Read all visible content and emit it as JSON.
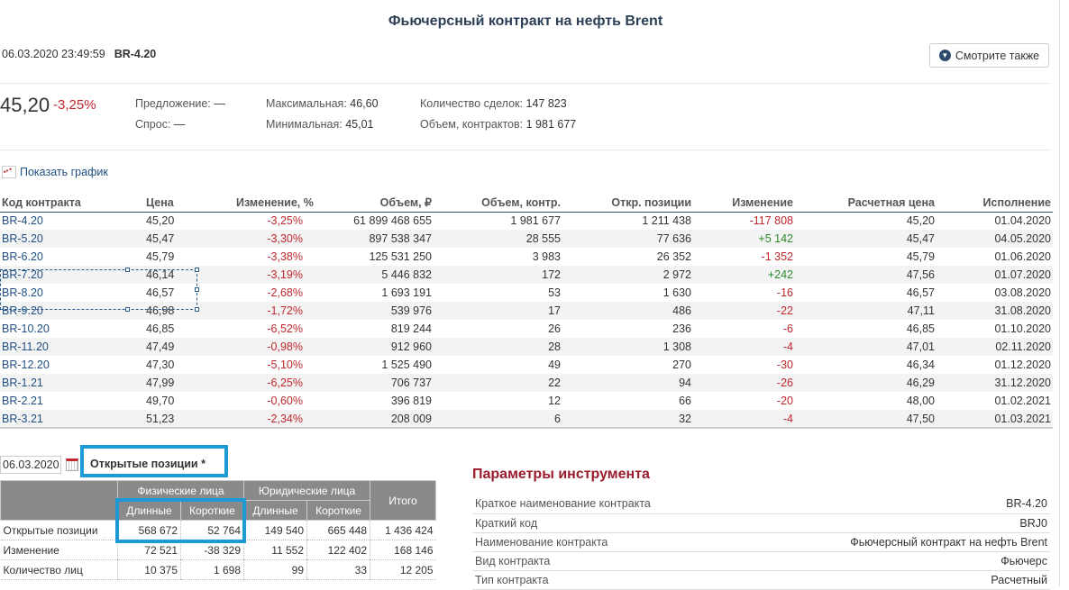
{
  "title": "Фьючерсный контракт на нефть Brent",
  "timestamp": "06.03.2020 23:49:59",
  "ticker": "BR-4.20",
  "see_also": "Смотрите также",
  "price": "45,20",
  "price_change": "-3,25%",
  "stats": {
    "offer_label": "Предложение:",
    "offer": "—",
    "bid_label": "Спрос:",
    "bid": "—",
    "max_label": "Максимальная:",
    "max": "46,60",
    "min_label": "Минимальная:",
    "min": "45,01",
    "deals_label": "Количество сделок:",
    "deals": "147 823",
    "volume_label": "Объем, контрактов:",
    "volume": "1 981 677"
  },
  "show_chart": "Показать график",
  "table": {
    "headers": [
      "Код контракта",
      "Цена",
      "Изменение, %",
      "Объем, ₽",
      "Объем, контр.",
      "Откр. позиции",
      "Изменение",
      "Расчетная цена",
      "Исполнение"
    ],
    "rows": [
      [
        "BR-4.20",
        "45,20",
        "-3,25%",
        "61 899 468 655",
        "1 981 677",
        "1 211 438",
        "-117 808",
        "45,20",
        "01.04.2020"
      ],
      [
        "BR-5.20",
        "45,47",
        "-3,30%",
        "897 538 347",
        "28 555",
        "77 636",
        "+5 142",
        "45,47",
        "04.05.2020"
      ],
      [
        "BR-6.20",
        "45,79",
        "-3,38%",
        "125 531 250",
        "3 983",
        "26 352",
        "-1 352",
        "45,79",
        "01.06.2020"
      ],
      [
        "BR-7.20",
        "46,14",
        "-3,19%",
        "5 446 832",
        "172",
        "2 972",
        "+242",
        "47,56",
        "01.07.2020"
      ],
      [
        "BR-8.20",
        "46,57",
        "-2,68%",
        "1 693 191",
        "53",
        "1 630",
        "-16",
        "46,57",
        "03.08.2020"
      ],
      [
        "BR-9.20",
        "46,98",
        "-1,72%",
        "539 976",
        "17",
        "486",
        "-22",
        "47,11",
        "31.08.2020"
      ],
      [
        "BR-10.20",
        "46,85",
        "-6,52%",
        "819 244",
        "26",
        "236",
        "-6",
        "46,85",
        "01.10.2020"
      ],
      [
        "BR-11.20",
        "47,49",
        "-0,98%",
        "912 960",
        "28",
        "1 308",
        "-4",
        "47,01",
        "02.11.2020"
      ],
      [
        "BR-12.20",
        "47,30",
        "-5,10%",
        "1 525 490",
        "49",
        "270",
        "-30",
        "46,34",
        "01.12.2020"
      ],
      [
        "BR-1.21",
        "47,99",
        "-6,25%",
        "706 737",
        "22",
        "94",
        "-26",
        "46,29",
        "31.12.2020"
      ],
      [
        "BR-2.21",
        "49,70",
        "-0,60%",
        "396 819",
        "12",
        "66",
        "-20",
        "48,00",
        "01.02.2021"
      ],
      [
        "BR-3.21",
        "51,23",
        "-2,34%",
        "208 009",
        "6",
        "32",
        "-4",
        "47,50",
        "01.03.2021"
      ]
    ]
  },
  "oi": {
    "date": "06.03.2020",
    "title": "Открытые позиции *",
    "group_phys": "Физические лица",
    "group_jur": "Юридические лица",
    "total": "Итого",
    "long": "Длинные",
    "short": "Короткие",
    "rows": [
      [
        "Открытые позиции",
        "568 672",
        "52 764",
        "149 540",
        "665 448",
        "1 436 424"
      ],
      [
        "Изменение",
        "72 521",
        "-38 329",
        "11 552",
        "122 402",
        "168 146"
      ],
      [
        "Количество лиц",
        "10 375",
        "1 698",
        "99",
        "33",
        "12 205"
      ]
    ]
  },
  "params": {
    "title": "Параметры инструмента",
    "rows": [
      [
        "Краткое наименование контракта",
        "BR-4.20"
      ],
      [
        "Краткий код",
        "BRJ0"
      ],
      [
        "Наименование контракта",
        "Фьючерсный контракт на нефть Brent"
      ],
      [
        "Вид контракта",
        "Фьючерс"
      ],
      [
        "Тип контракта",
        "Расчетный"
      ]
    ]
  }
}
